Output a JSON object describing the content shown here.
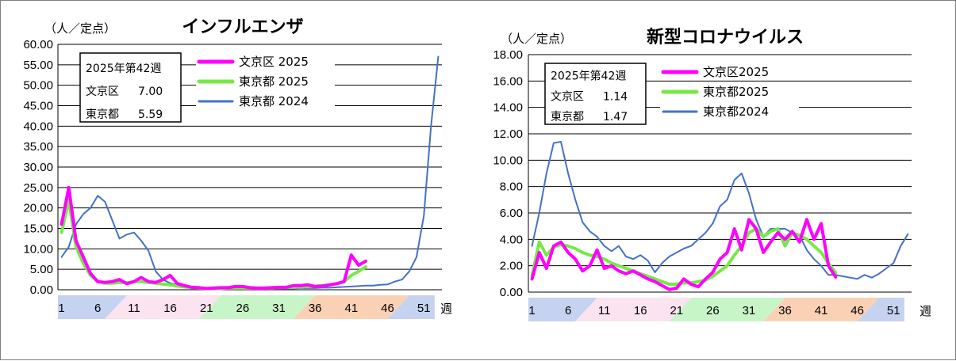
{
  "chart_data": [
    {
      "type": "line",
      "title": "インフルエンザ",
      "unit_label": "（人／定点）",
      "xlabel": "週",
      "ylim": [
        0,
        60
      ],
      "ytick_step": 5,
      "ytick_labels": [
        "0.00",
        "5.00",
        "10.00",
        "15.00",
        "20.00",
        "25.00",
        "30.00",
        "35.00",
        "40.00",
        "45.00",
        "50.00",
        "55.00",
        "60.00"
      ],
      "x_ticks": [
        "1",
        "6",
        "11",
        "16",
        "21",
        "26",
        "31",
        "36",
        "41",
        "46",
        "51"
      ],
      "season_bands": [
        {
          "from": 1,
          "to": 9,
          "color": "#c5d3f1"
        },
        {
          "from": 9,
          "to": 22,
          "color": "#fbe3ef"
        },
        {
          "from": 22,
          "to": 35,
          "color": "#c8f5c8"
        },
        {
          "from": 35,
          "to": 48,
          "color": "#fbd1b5"
        },
        {
          "from": 48,
          "to": 53,
          "color": "#c5d3f1"
        }
      ],
      "info_box": {
        "title": "2025年第42週",
        "row1_name": "文京区",
        "row1_value": "7.00",
        "row2_name": "東京都",
        "row2_value": "5.59"
      },
      "series": [
        {
          "name": "文京区 2025",
          "color": "#ff00ff",
          "width": 4,
          "values": [
            16.0,
            25.0,
            12.0,
            8.0,
            4.0,
            2.0,
            1.8,
            2.0,
            2.5,
            1.5,
            2.0,
            3.0,
            2.0,
            1.8,
            2.5,
            3.5,
            1.5,
            1.0,
            0.6,
            0.5,
            0.3,
            0.4,
            0.5,
            0.5,
            0.8,
            0.8,
            0.5,
            0.4,
            0.4,
            0.5,
            0.6,
            0.6,
            1.0,
            1.0,
            1.2,
            0.8,
            0.9,
            1.2,
            1.5,
            2.0,
            8.5,
            6.0,
            7.0
          ]
        },
        {
          "name": "東京都 2025",
          "color": "#77e846",
          "width": 4,
          "values": [
            14.0,
            22.0,
            10.5,
            6.5,
            3.5,
            2.0,
            1.6,
            1.6,
            1.8,
            1.7,
            2.0,
            2.0,
            1.8,
            1.6,
            1.4,
            1.2,
            0.9,
            0.7,
            0.5,
            0.4,
            0.3,
            0.3,
            0.3,
            0.4,
            0.4,
            0.4,
            0.4,
            0.4,
            0.4,
            0.4,
            0.5,
            0.6,
            0.6,
            0.7,
            0.8,
            0.9,
            1.0,
            1.2,
            1.5,
            2.0,
            3.5,
            4.5,
            5.59
          ]
        },
        {
          "name": "東京都 2024",
          "color": "#4472c4",
          "width": 2,
          "values": [
            8.0,
            10.5,
            16.0,
            18.5,
            20.0,
            23.0,
            21.5,
            17.0,
            12.5,
            13.5,
            14.0,
            12.0,
            9.5,
            4.5,
            2.5,
            1.6,
            1.2,
            0.9,
            0.7,
            0.5,
            0.4,
            0.3,
            0.3,
            0.3,
            0.4,
            0.4,
            0.4,
            0.4,
            0.4,
            0.4,
            0.3,
            0.3,
            0.3,
            0.4,
            0.4,
            0.4,
            0.5,
            0.5,
            0.6,
            0.7,
            0.8,
            0.9,
            1.0,
            1.0,
            1.2,
            1.3,
            2.0,
            2.5,
            4.5,
            8.0,
            18.0,
            40.0,
            57.0
          ]
        }
      ]
    },
    {
      "type": "line",
      "title": "新型コロナウイルス",
      "unit_label": "（人／定点）",
      "xlabel": "週",
      "ylim": [
        0,
        18
      ],
      "ytick_step": 2,
      "ytick_labels": [
        "0.00",
        "2.00",
        "4.00",
        "6.00",
        "8.00",
        "10.00",
        "12.00",
        "14.00",
        "16.00",
        "18.00"
      ],
      "x_ticks": [
        "1",
        "6",
        "11",
        "16",
        "21",
        "26",
        "31",
        "36",
        "41",
        "46",
        "51"
      ],
      "season_bands": [
        {
          "from": 1,
          "to": 9,
          "color": "#c5d3f1"
        },
        {
          "from": 9,
          "to": 22,
          "color": "#fbe3ef"
        },
        {
          "from": 22,
          "to": 35,
          "color": "#c8f5c8"
        },
        {
          "from": 35,
          "to": 48,
          "color": "#fbd1b5"
        },
        {
          "from": 48,
          "to": 53,
          "color": "#c5d3f1"
        }
      ],
      "info_box": {
        "title": "2025年第42週",
        "row1_name": "文京区",
        "row1_value": "1.14",
        "row2_name": "東京都",
        "row2_value": "1.47"
      },
      "series": [
        {
          "name": "文京区2025",
          "color": "#ff00ff",
          "width": 4,
          "values": [
            1.0,
            3.0,
            1.8,
            3.5,
            3.8,
            3.0,
            2.5,
            1.6,
            2.0,
            3.2,
            1.8,
            2.0,
            1.6,
            1.4,
            1.6,
            1.3,
            1.0,
            0.8,
            0.5,
            0.2,
            0.3,
            1.0,
            0.6,
            0.4,
            1.0,
            1.5,
            2.5,
            3.0,
            4.8,
            3.2,
            5.5,
            4.8,
            3.0,
            3.8,
            4.5,
            4.0,
            4.6,
            3.8,
            5.5,
            4.0,
            5.2,
            2.0,
            1.14
          ]
        },
        {
          "name": "東京都2025",
          "color": "#77e846",
          "width": 4,
          "values": [
            1.2,
            3.8,
            2.8,
            3.4,
            3.6,
            3.5,
            3.3,
            3.0,
            2.8,
            2.7,
            2.5,
            2.2,
            2.0,
            1.8,
            1.6,
            1.4,
            1.2,
            1.0,
            0.8,
            0.6,
            0.6,
            0.7,
            0.7,
            0.8,
            0.9,
            1.2,
            1.6,
            2.0,
            2.8,
            3.5,
            4.5,
            4.8,
            4.2,
            4.6,
            4.8,
            3.5,
            4.5,
            4.3,
            4.0,
            3.5,
            3.0,
            2.2,
            1.47
          ]
        },
        {
          "name": "東京都2024",
          "color": "#4472c4",
          "width": 2,
          "values": [
            3.5,
            6.0,
            9.0,
            11.3,
            11.4,
            9.0,
            7.0,
            5.3,
            4.6,
            4.2,
            3.5,
            3.1,
            3.5,
            2.7,
            2.5,
            2.8,
            2.4,
            1.5,
            2.2,
            2.7,
            3.0,
            3.3,
            3.5,
            4.0,
            4.5,
            5.2,
            6.5,
            7.0,
            8.5,
            9.0,
            7.5,
            5.5,
            4.2,
            4.8,
            4.8,
            4.8,
            4.5,
            4.3,
            3.2,
            2.5,
            2.0,
            1.3,
            1.3,
            1.2,
            1.1,
            1.0,
            1.3,
            1.1,
            1.4,
            1.8,
            2.2,
            3.5,
            4.4
          ]
        }
      ]
    }
  ]
}
